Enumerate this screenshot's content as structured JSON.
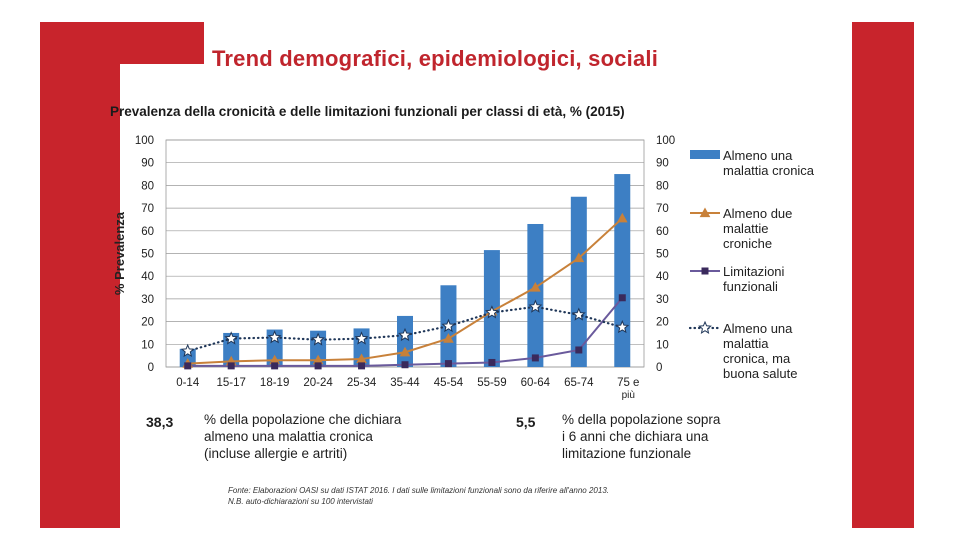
{
  "title": "Trend demografici, epidemiologici, sociali",
  "subtitle": "Prevalenza della cronicità e delle limitazioni funzionali per classi di età, % (2015)",
  "colors": {
    "accent": "#c8242c",
    "bar": "#3d7fc4",
    "line_due": "#c8813a",
    "line_lim": "#6a5a9c",
    "line_buona": "#1f3658"
  },
  "chart_data": {
    "type": "bar",
    "ylabel": "% Prevalenza",
    "ylim": [
      0,
      100
    ],
    "yticks": [
      0,
      10,
      20,
      30,
      40,
      50,
      60,
      70,
      80,
      90,
      100
    ],
    "grid": true,
    "categories": [
      "0-14",
      "15-17",
      "18-19",
      "20-24",
      "25-34",
      "35-44",
      "45-54",
      "55-59",
      "60-64",
      "65-74",
      "75 e più"
    ],
    "series": [
      {
        "name": "Almeno una malattia cronica",
        "kind": "bar",
        "values": [
          8,
          15,
          16.5,
          16,
          17,
          22.5,
          36,
          51.5,
          63,
          75,
          85
        ]
      },
      {
        "name": "Almeno due malattie croniche",
        "kind": "line",
        "marker": "triangle",
        "values": [
          1.5,
          2.5,
          3,
          3,
          3.5,
          6.5,
          12.5,
          24.5,
          35,
          48,
          65.5
        ]
      },
      {
        "name": "Limitazioni funzionali",
        "kind": "line",
        "marker": "square",
        "values": [
          0.5,
          0.5,
          0.5,
          0.5,
          0.5,
          1,
          1.5,
          2,
          4,
          7.5,
          30.5
        ]
      },
      {
        "name": "Almeno una malattia cronica, ma buona salute",
        "kind": "dotted",
        "marker": "star",
        "values": [
          7,
          12.5,
          13,
          12,
          12.5,
          14,
          18,
          24,
          26.5,
          23,
          17.5
        ]
      }
    ],
    "legend": [
      {
        "lines": [
          "Almeno una",
          "malattia cronica"
        ]
      },
      {
        "lines": [
          "Almeno due",
          "malattie",
          "croniche"
        ]
      },
      {
        "lines": [
          "Limitazioni",
          "funzionali"
        ]
      },
      {
        "lines": [
          "Almeno una",
          "malattia",
          "cronica, ma",
          "buona salute"
        ]
      }
    ]
  },
  "stats": [
    {
      "value": "38,3",
      "text_lines": [
        "% della popolazione che dichiara",
        "almeno una malattia cronica",
        "(incluse allergie e artriti)"
      ]
    },
    {
      "value": "5,5",
      "text_lines": [
        "% della popolazione sopra",
        "i 6 anni che dichiara una",
        "limitazione funzionale"
      ]
    }
  ],
  "footnotes": [
    "Fonte: Elaborazioni OASI su dati ISTAT 2016. I dati sulle limitazioni funzionali sono da riferire all'anno 2013.",
    "N.B. auto-dichiarazioni su 100 intervistati"
  ]
}
